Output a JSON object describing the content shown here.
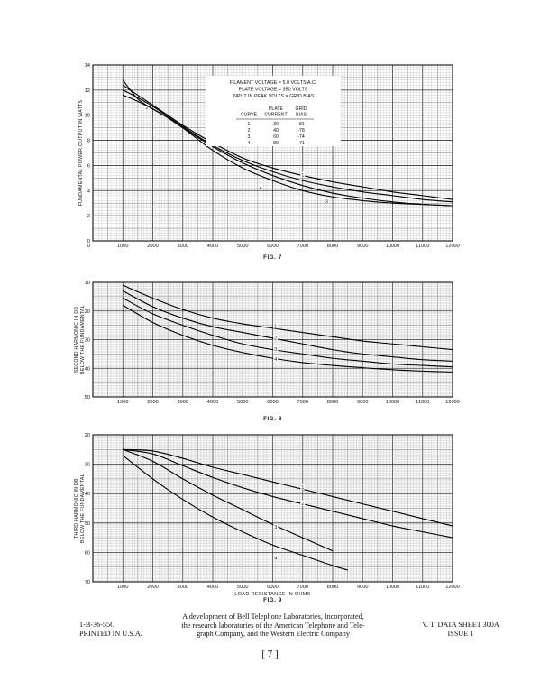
{
  "charts": [
    {
      "type": "line",
      "fig_label": "FIG. 7",
      "ylabel": "FUNDAMENTAL POWER OUTPUT IN WATTS",
      "xlabel": "",
      "xlim": [
        0,
        12000
      ],
      "ylim": [
        0,
        14
      ],
      "y_reversed": false,
      "x_ticks": [
        0,
        1000,
        2000,
        3000,
        4000,
        5000,
        6000,
        7000,
        8000,
        9000,
        10000,
        11000,
        12000
      ],
      "y_ticks": [
        0,
        2,
        4,
        6,
        8,
        10,
        12,
        14
      ],
      "conditions": [
        "FILAMENT VOLTAGE = 5.0 VOLTS A.C.",
        "PLATE VOLTAGE = 350 VOLTS",
        "INPUT IN PEAK VOLTS = GRID BIAS"
      ],
      "table": {
        "headers": [
          [
            "",
            "PLATE",
            "GRID"
          ],
          [
            "CURVE",
            "CURRENT",
            "BIAS"
          ]
        ],
        "rows": [
          [
            "1",
            "30",
            "-81"
          ],
          [
            "2",
            "40",
            "-78"
          ],
          [
            "3",
            "60",
            "-74"
          ],
          [
            "4",
            "80",
            "-71"
          ]
        ]
      },
      "series": [
        {
          "name": "1",
          "label_at": [
            7000,
            5.2
          ],
          "x": [
            1000,
            1500,
            2000,
            2500,
            3000,
            4000,
            5000,
            6000,
            7000,
            8000,
            9000,
            10000,
            11000,
            12000
          ],
          "y": [
            12.4,
            11.6,
            10.8,
            10.0,
            9.2,
            7.8,
            6.6,
            5.8,
            5.2,
            4.7,
            4.3,
            3.9,
            3.6,
            3.3
          ]
        },
        {
          "name": "2",
          "label_at": [
            1800,
            10.6
          ],
          "x": [
            1000,
            1500,
            2000,
            2500,
            3000,
            4000,
            5000,
            6000,
            7000,
            8000,
            9000,
            10000,
            11000,
            12000
          ],
          "y": [
            12.0,
            11.4,
            10.7,
            9.9,
            9.1,
            7.6,
            6.4,
            5.5,
            4.8,
            4.3,
            3.9,
            3.6,
            3.3,
            3.1
          ]
        },
        {
          "name": "3",
          "label_at": [
            7800,
            3.1
          ],
          "x": [
            1000,
            1500,
            2000,
            2500,
            3000,
            4000,
            5000,
            6000,
            7000,
            8000,
            9000,
            10000,
            11000,
            12000
          ],
          "y": [
            11.6,
            11.1,
            10.5,
            9.8,
            9.0,
            7.5,
            6.2,
            5.2,
            4.4,
            3.8,
            3.4,
            3.1,
            2.9,
            2.8
          ]
        },
        {
          "name": "4",
          "label_at": [
            5600,
            4.2
          ],
          "x": [
            1000,
            1500,
            2000,
            2500,
            3000,
            4000,
            5000,
            6000,
            7000,
            8000,
            9000,
            10000,
            11000,
            12000
          ],
          "y": [
            12.8,
            11.3,
            10.5,
            9.8,
            9.0,
            7.2,
            5.8,
            4.8,
            4.0,
            3.5,
            3.2,
            3.0,
            2.9,
            2.8
          ]
        }
      ]
    },
    {
      "type": "line",
      "fig_label": "FIG. 8",
      "ylabel": [
        "SECOND HARMONIC IN DB",
        "BELOW THE FUNDAMENTAL"
      ],
      "xlabel": "",
      "xlim": [
        0,
        12000
      ],
      "ylim": [
        10,
        50
      ],
      "y_reversed": true,
      "x_ticks": [
        0,
        1000,
        2000,
        3000,
        4000,
        5000,
        6000,
        7000,
        8000,
        9000,
        10000,
        11000,
        12000
      ],
      "y_ticks": [
        10,
        20,
        30,
        40,
        50
      ],
      "series": [
        {
          "name": "1",
          "label_at": [
            6100,
            25.5
          ],
          "x": [
            1000,
            2000,
            3000,
            4000,
            5000,
            6000,
            7000,
            8000,
            9000,
            10000,
            11000,
            12000
          ],
          "y": [
            11.0,
            15.5,
            19.5,
            22.5,
            24.5,
            26.0,
            27.5,
            29.0,
            30.5,
            31.5,
            32.5,
            33.5
          ]
        },
        {
          "name": "2",
          "label_at": [
            6100,
            29.5
          ],
          "x": [
            1000,
            2000,
            3000,
            4000,
            5000,
            6000,
            7000,
            8000,
            9000,
            10000,
            11000,
            12000
          ],
          "y": [
            13.0,
            18.5,
            22.5,
            25.5,
            27.5,
            29.5,
            31.5,
            33.5,
            35.0,
            36.0,
            37.0,
            37.5
          ]
        },
        {
          "name": "3",
          "label_at": [
            6100,
            33.5
          ],
          "x": [
            1000,
            2000,
            3000,
            4000,
            5000,
            6000,
            7000,
            8000,
            9000,
            10000,
            11000,
            12000
          ],
          "y": [
            15.5,
            21.0,
            25.0,
            28.5,
            31.5,
            33.5,
            35.0,
            36.5,
            37.5,
            38.5,
            39.0,
            39.5
          ]
        },
        {
          "name": "4",
          "label_at": [
            6100,
            37.0
          ],
          "x": [
            1000,
            2000,
            3000,
            4000,
            5000,
            6000,
            7000,
            8000,
            9000,
            10000,
            11000,
            12000
          ],
          "y": [
            18.0,
            24.0,
            28.5,
            32.0,
            34.5,
            36.5,
            38.0,
            39.0,
            39.8,
            40.5,
            41.0,
            41.3
          ]
        }
      ]
    },
    {
      "type": "line",
      "fig_label": "FIG. 9",
      "ylabel": [
        "THIRD HARMONIC IN DB",
        "BELOW THE FUNDAMENTAL"
      ],
      "xlabel": "LOAD RESISTANCE IN OHMS",
      "xlim": [
        0,
        12000
      ],
      "ylim": [
        20,
        70
      ],
      "y_reversed": true,
      "x_ticks": [
        0,
        1000,
        2000,
        3000,
        4000,
        5000,
        6000,
        7000,
        8000,
        9000,
        10000,
        11000,
        12000
      ],
      "y_ticks": [
        20,
        30,
        40,
        50,
        60,
        70
      ],
      "series": [
        {
          "name": "1",
          "label_at": [
            7000,
            38.0
          ],
          "x": [
            1000,
            2000,
            3000,
            4000,
            5000,
            6000,
            7000,
            8000,
            9000,
            10000,
            11000,
            12000
          ],
          "y": [
            25.0,
            25.5,
            28.0,
            31.0,
            33.5,
            36.0,
            38.5,
            41.0,
            43.5,
            46.0,
            48.5,
            51.0
          ]
        },
        {
          "name": "2",
          "label_at": [
            7000,
            43.5
          ],
          "x": [
            1000,
            2000,
            3000,
            4000,
            5000,
            6000,
            7000,
            8000,
            9000,
            10000,
            11000,
            12000
          ],
          "y": [
            25.0,
            26.5,
            30.5,
            34.5,
            38.0,
            41.0,
            43.5,
            46.0,
            48.5,
            51.0,
            53.0,
            55.0
          ]
        },
        {
          "name": "3",
          "label_at": [
            6100,
            51.5
          ],
          "x": [
            1000,
            2000,
            3000,
            4000,
            5000,
            6000,
            7000,
            8000
          ],
          "y": [
            25.0,
            29.0,
            35.0,
            40.5,
            45.5,
            50.5,
            55.0,
            59.5
          ]
        },
        {
          "name": "4",
          "label_at": [
            6100,
            62.0
          ],
          "x": [
            1000,
            2000,
            3000,
            4000,
            5000,
            6000,
            7000,
            8000,
            8500
          ],
          "y": [
            27.0,
            35.0,
            42.0,
            48.0,
            53.0,
            57.5,
            61.0,
            64.5,
            66.0
          ]
        }
      ]
    }
  ],
  "footer": {
    "left": [
      "1-B-36-55C",
      "PRINTED IN U.S.A."
    ],
    "center": [
      "A development of Bell Telephone Laboratories, Incorporated,",
      "the research laboratories of the American Telephone and Tele-",
      "graph Company, and the Western Electric Company"
    ],
    "right": [
      "V. T. DATA SHEET 300A",
      "ISSUE 1"
    ],
    "page_number": "[ 7 ]"
  }
}
